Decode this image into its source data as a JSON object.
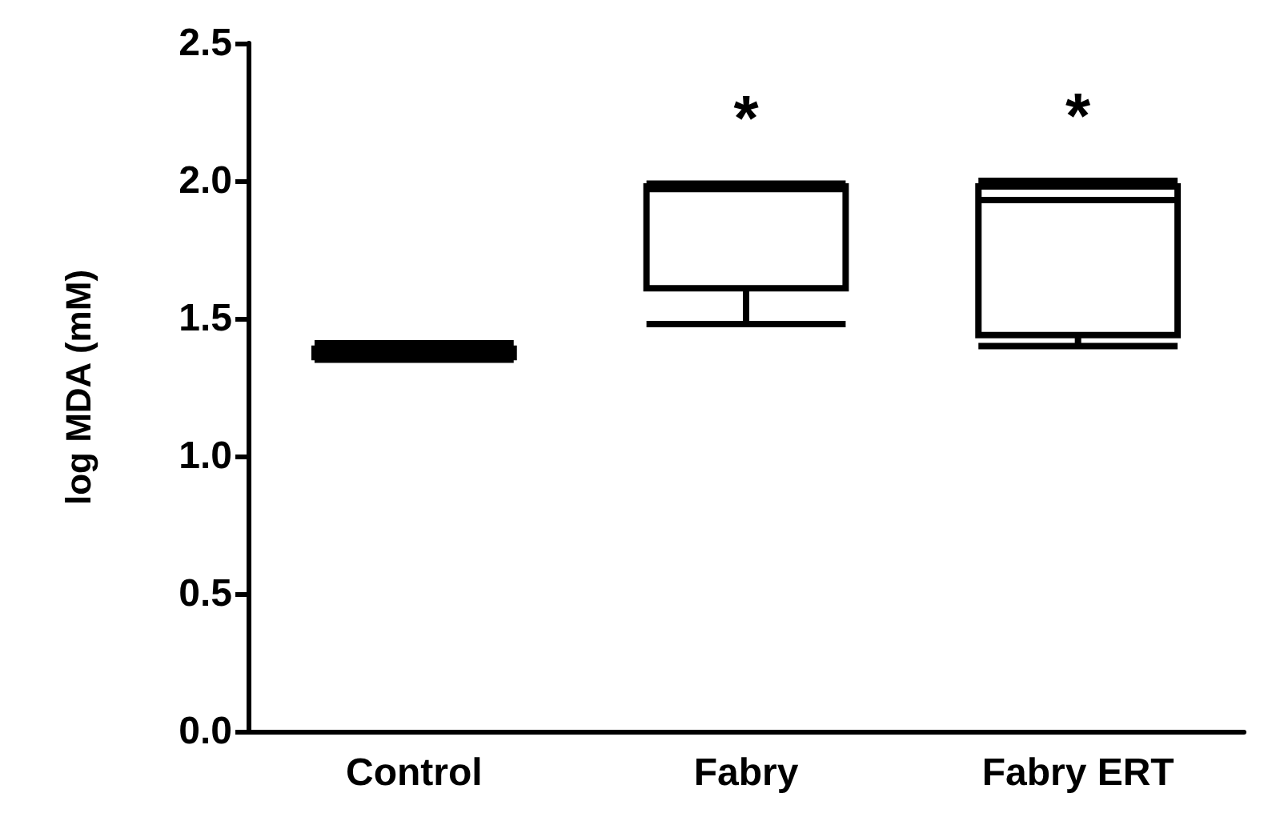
{
  "chart_data": {
    "type": "box",
    "ylabel": "log MDA (mM)",
    "categories": [
      "Control",
      "Fabry",
      "Fabry ERT"
    ],
    "boxes": [
      {
        "low": 1.35,
        "q1": 1.36,
        "median": 1.38,
        "q3": 1.39,
        "high": 1.41
      },
      {
        "low": 1.48,
        "q1": 1.61,
        "median": 1.97,
        "q3": 1.98,
        "high": 1.99
      },
      {
        "low": 1.4,
        "q1": 1.44,
        "median": 1.93,
        "q3": 1.98,
        "high": 2.0
      }
    ],
    "color": "#000000",
    "ylim": [
      0,
      2.5
    ],
    "yticks": [
      {
        "value": 0,
        "label": "0.0"
      },
      {
        "value": 0.5,
        "label": "0.5"
      },
      {
        "value": 1,
        "label": "1.0"
      },
      {
        "value": 1.5,
        "label": "1.5"
      },
      {
        "value": 2,
        "label": "2.0"
      },
      {
        "value": 2.5,
        "label": "2.5"
      }
    ],
    "grid": false,
    "annotations": [
      "*",
      "*"
    ]
  }
}
